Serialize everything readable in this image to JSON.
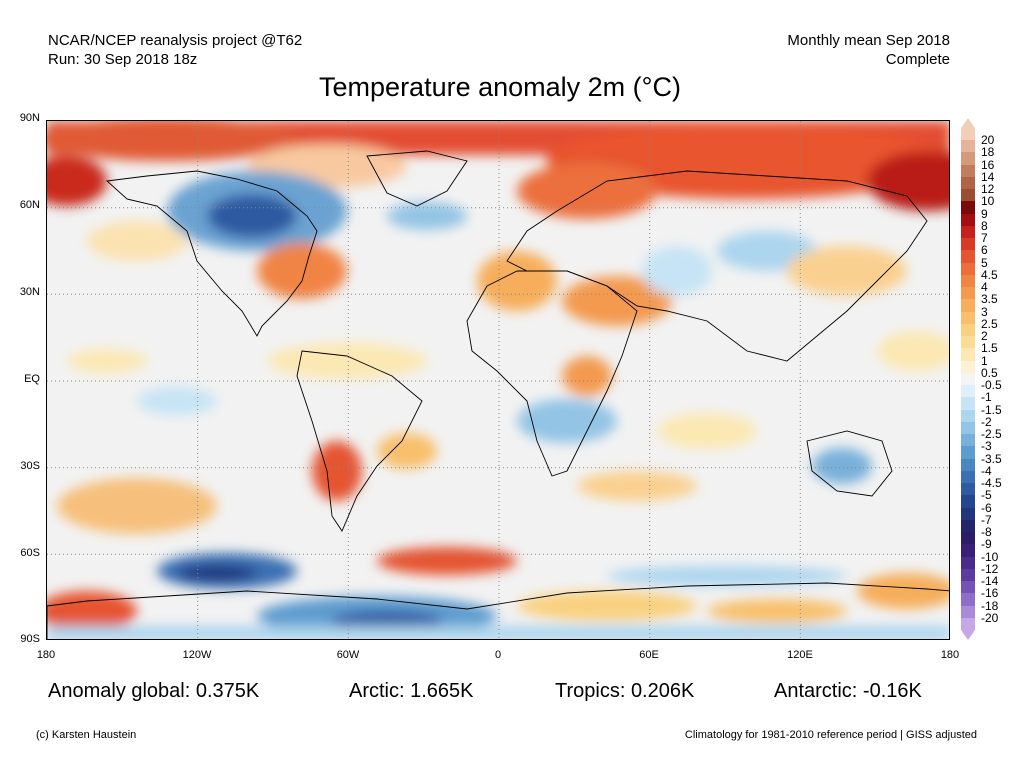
{
  "header": {
    "left_line1": "NCAR/NCEP reanalysis project @T62",
    "left_line2": "Run: 30 Sep 2018 18z",
    "right_line1": "Monthly mean Sep 2018",
    "right_line2": "Complete"
  },
  "title": "Temperature anomaly 2m (°C)",
  "map": {
    "lat_labels": [
      "90N",
      "60N",
      "30N",
      "EQ",
      "30S",
      "60S",
      "90S"
    ],
    "lon_labels": [
      "180",
      "120W",
      "60W",
      "0",
      "60E",
      "120E",
      "180"
    ],
    "grid": "dotted"
  },
  "colorbar": {
    "labels": [
      "20",
      "18",
      "16",
      "14",
      "12",
      "10",
      "9",
      "8",
      "7",
      "6",
      "5",
      "4.5",
      "4",
      "3.5",
      "3",
      "2.5",
      "2",
      "1.5",
      "1",
      "0.5",
      "-0.5",
      "-1",
      "-1.5",
      "-2",
      "-2.5",
      "-3",
      "-3.5",
      "-4",
      "-4.5",
      "-5",
      "-6",
      "-7",
      "-8",
      "-9",
      "-10",
      "-12",
      "-14",
      "-16",
      "-18",
      "-20"
    ],
    "colors": [
      "#f2cdb8",
      "#e6b39a",
      "#d59a7b",
      "#c27d5e",
      "#ae6445",
      "#9a4d30",
      "#7a0a0a",
      "#a30f10",
      "#c3211b",
      "#d93a26",
      "#e55532",
      "#ec6e3c",
      "#f08444",
      "#f39a50",
      "#f6ae5c",
      "#f8c06c",
      "#f9d07f",
      "#fadc96",
      "#fbe8b2",
      "#fbf1d4",
      "#f4f4f4",
      "#dceffa",
      "#c6e4f5",
      "#acd5ee",
      "#93c4e5",
      "#78b0da",
      "#5f9ccf",
      "#4a86c2",
      "#3b70b3",
      "#2e5aa2",
      "#25468f",
      "#23357d",
      "#24266c",
      "#2b1c66",
      "#3a1f78",
      "#4a2b8a",
      "#5d3a9e",
      "#7552b4",
      "#8e6ec8",
      "#a88ad8",
      "#c4a9e6"
    ]
  },
  "stats": {
    "global": "Anomaly global: 0.375K",
    "arctic": "Arctic: 1.665K",
    "tropics": "Tropics: 0.206K",
    "antarctic": "Antarctic: -0.16K"
  },
  "footer": {
    "copyright": "(c) Karsten Haustein",
    "climatology": "Climatology for 1981-2010 reference period | GISS adjusted"
  }
}
